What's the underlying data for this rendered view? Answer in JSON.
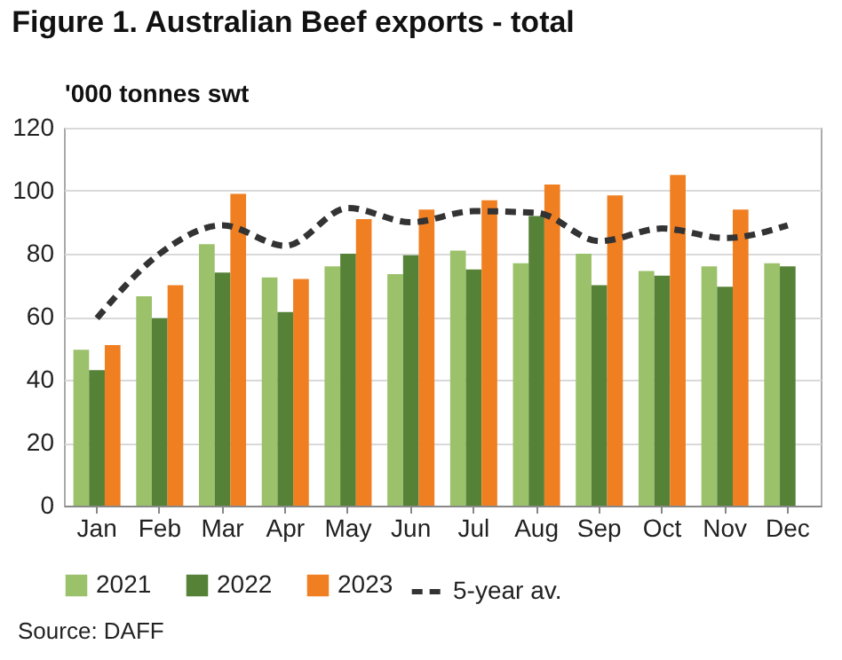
{
  "chart_data": {
    "type": "bar",
    "title": "Figure 1. Australian Beef exports - total",
    "ylabel": "'000 tonnes swt",
    "categories": [
      "Jan",
      "Feb",
      "Mar",
      "Apr",
      "May",
      "Jun",
      "Jul",
      "Aug",
      "Sep",
      "Oct",
      "Nov",
      "Dec"
    ],
    "series": [
      {
        "name": "2021",
        "color": "#9bc16a",
        "values": [
          49.5,
          66.5,
          83,
          72.5,
          76,
          73.5,
          81,
          77,
          80,
          74.5,
          76,
          77
        ]
      },
      {
        "name": "2022",
        "color": "#568237",
        "values": [
          43,
          59.5,
          74,
          61.5,
          80,
          79.5,
          75,
          92,
          70,
          73,
          69.5,
          76
        ]
      },
      {
        "name": "2023",
        "color": "#f07f22",
        "values": [
          51,
          70,
          99,
          72,
          91,
          94,
          97,
          102,
          98.5,
          105,
          94,
          null
        ]
      },
      {
        "name": "5-year av.",
        "type": "line",
        "color": "#333333",
        "line_style": "dashed",
        "values": [
          59.5,
          80,
          89,
          82.5,
          94.5,
          90,
          93.5,
          93,
          84,
          88,
          85,
          89
        ]
      }
    ],
    "ylim": [
      0,
      120
    ],
    "yticks": [
      0,
      20,
      40,
      60,
      80,
      100,
      120
    ],
    "grid": "y",
    "legend": "bottom",
    "annotations": [
      "Source: DAFF"
    ]
  }
}
